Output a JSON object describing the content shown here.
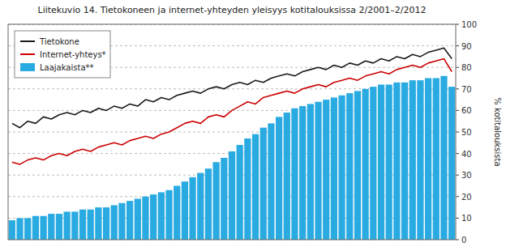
{
  "chart_data": {
    "type": "bar",
    "title": "Liitekuvio 14. Tietokoneen ja internet-yhteyden yleisyys kotitalouksissa 2/2001–2/2012",
    "y_label": "% kotitalouksista",
    "categories": [
      null,
      null,
      null,
      null,
      null,
      null,
      null,
      null,
      null,
      null,
      null,
      null,
      null,
      null,
      null,
      null,
      null,
      null,
      null,
      null,
      null,
      null,
      null,
      null,
      null,
      null,
      null,
      null,
      null,
      null,
      null,
      null,
      null,
      null,
      null,
      null,
      null,
      null,
      null,
      null,
      null,
      null,
      null,
      null,
      null,
      null,
      null,
      null,
      null,
      null,
      null,
      null,
      null,
      null,
      null,
      null,
      null
    ],
    "series": [
      {
        "name": "Tietokone",
        "type": "line",
        "color": "#1a1a1a",
        "values": [
          54,
          52,
          55,
          54,
          57,
          56,
          58,
          59,
          58,
          60,
          59,
          61,
          60,
          62,
          61,
          63,
          62,
          65,
          64,
          66,
          65,
          67,
          68,
          69,
          68,
          70,
          71,
          70,
          72,
          73,
          72,
          74,
          73,
          75,
          76,
          77,
          76,
          78,
          79,
          80,
          79,
          81,
          80,
          82,
          81,
          83,
          82,
          84,
          83,
          85,
          84,
          86,
          85,
          87,
          88,
          89,
          84
        ]
      },
      {
        "name": "Internet-yhteys*",
        "type": "line",
        "color": "#cc0000",
        "values": [
          36,
          35,
          37,
          38,
          37,
          39,
          40,
          39,
          41,
          42,
          41,
          43,
          44,
          45,
          44,
          46,
          47,
          48,
          47,
          49,
          50,
          52,
          54,
          55,
          54,
          57,
          58,
          57,
          60,
          62,
          64,
          63,
          66,
          67,
          68,
          69,
          68,
          70,
          71,
          72,
          71,
          73,
          74,
          75,
          74,
          76,
          77,
          78,
          77,
          79,
          80,
          81,
          80,
          82,
          83,
          84,
          78
        ]
      },
      {
        "name": "Laajakaista**",
        "type": "bar",
        "color": "#29ABE2",
        "values": [
          9,
          10,
          10,
          11,
          11,
          12,
          12,
          13,
          13,
          14,
          14,
          15,
          15,
          16,
          17,
          18,
          19,
          20,
          21,
          22,
          23,
          25,
          27,
          29,
          31,
          33,
          36,
          38,
          41,
          44,
          47,
          49,
          52,
          54,
          57,
          59,
          61,
          62,
          63,
          64,
          65,
          66,
          67,
          68,
          69,
          70,
          71,
          72,
          72,
          73,
          73,
          74,
          74,
          75,
          75,
          76,
          71
        ]
      }
    ],
    "ylim": [
      0,
      100
    ],
    "yticks": [
      0,
      10,
      20,
      30,
      40,
      50,
      60,
      70,
      80,
      90,
      100
    ],
    "grid": true,
    "legend": "upper left",
    "tick_labels": "y"
  }
}
